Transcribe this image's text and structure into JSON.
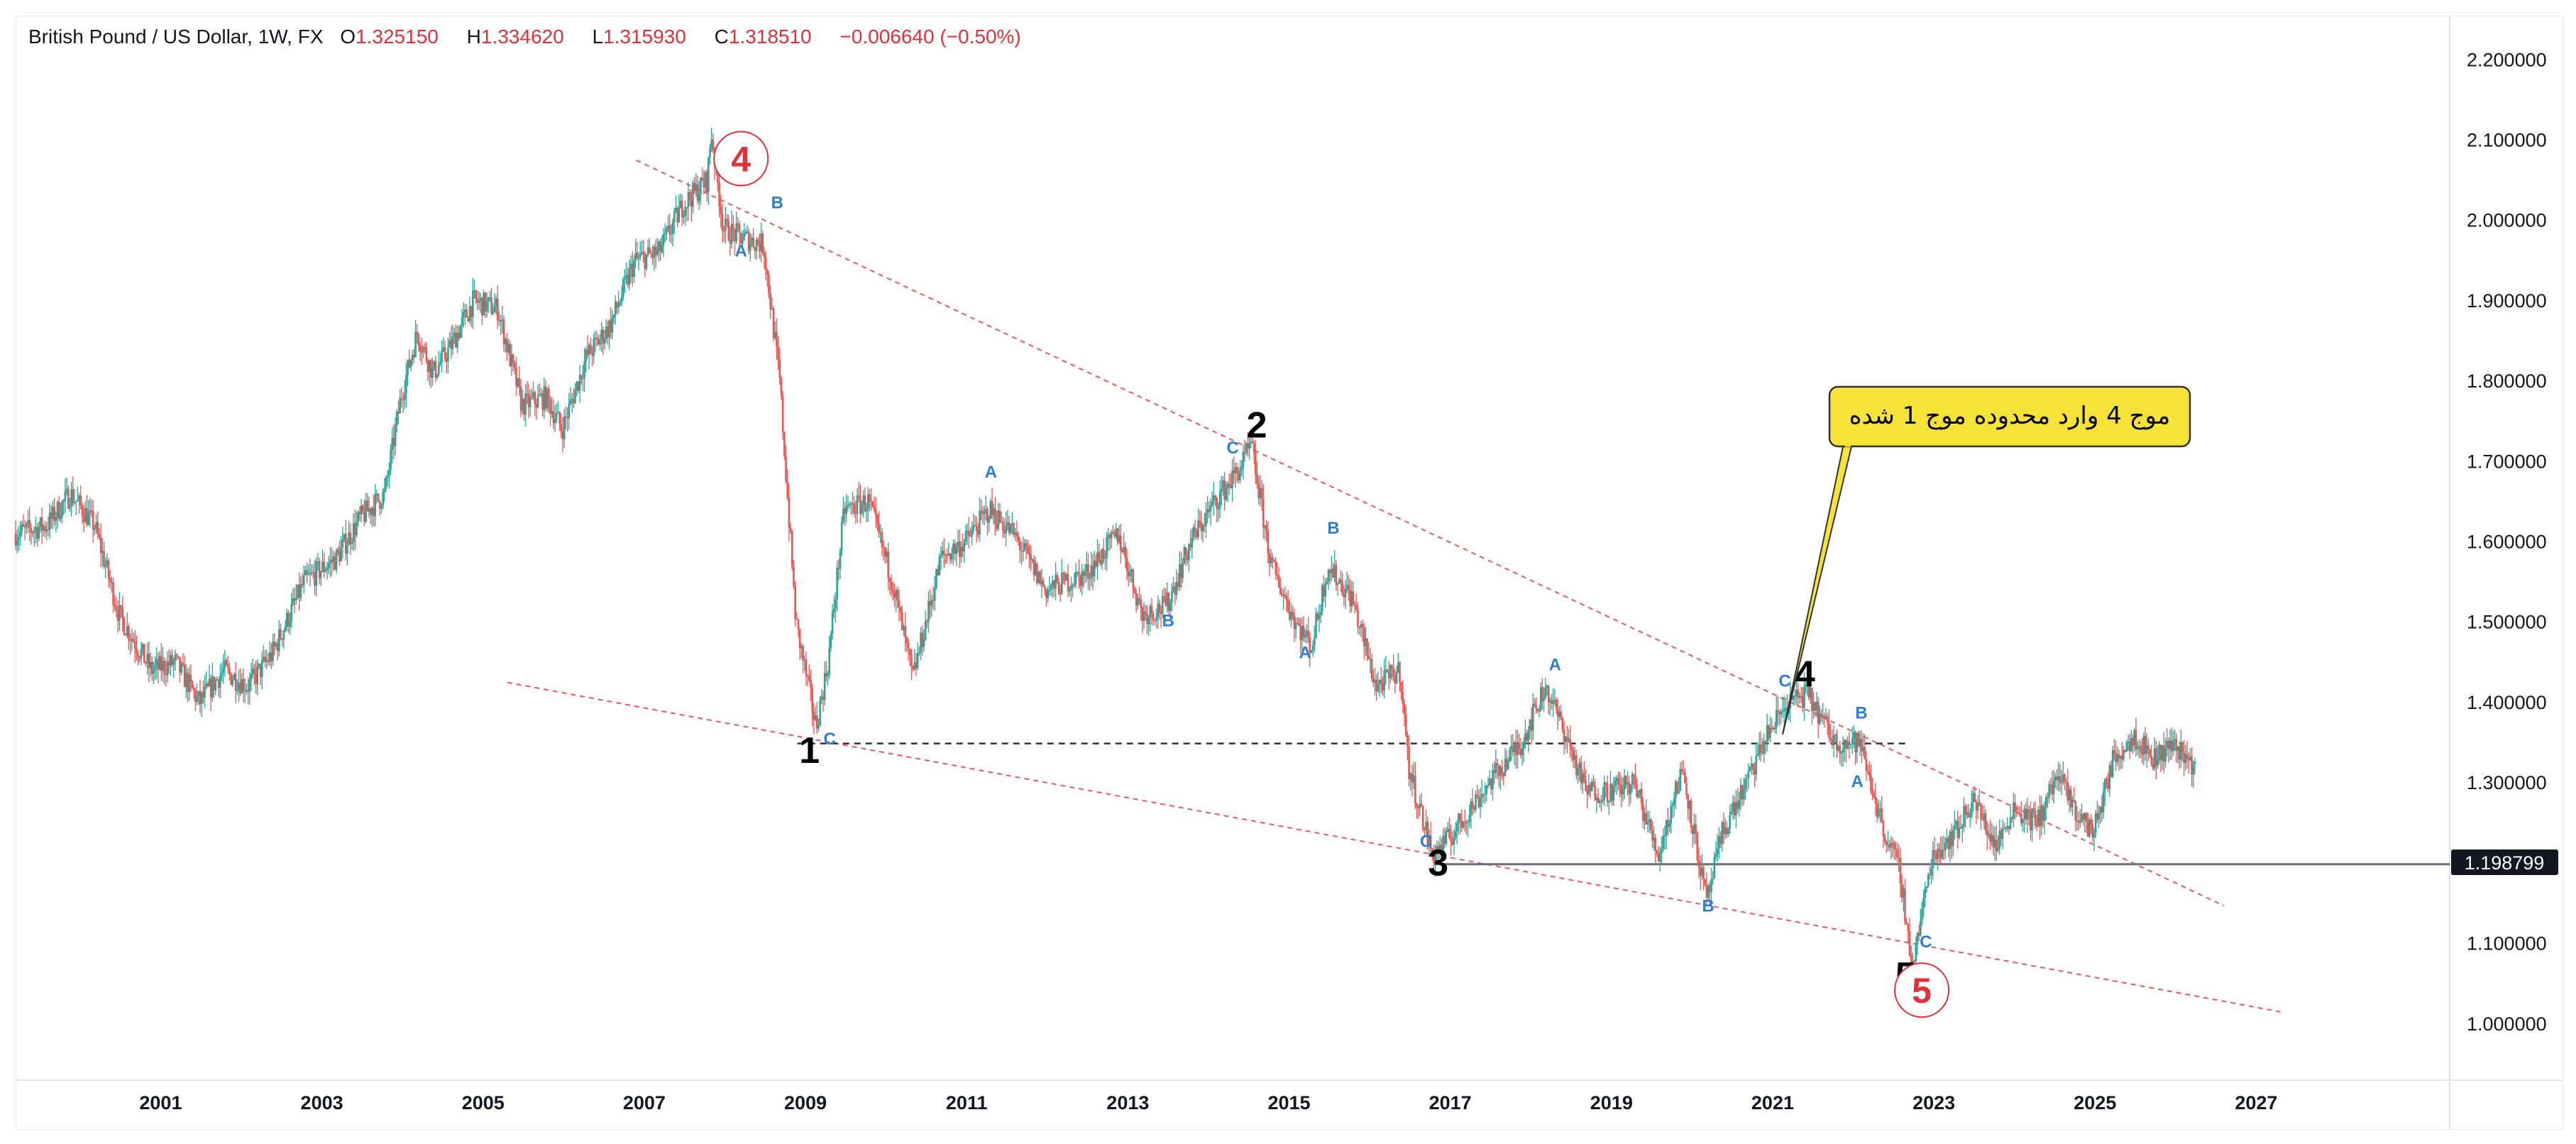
{
  "header": {
    "symbol": "British Pound / US Dollar, 1W, FX",
    "o_label": "O",
    "o_value": "1.325150",
    "h_label": "H",
    "h_value": "1.334620",
    "l_label": "L",
    "l_value": "1.315930",
    "c_label": "C",
    "c_value": "1.318510",
    "change": "−0.006640 (−0.50%)"
  },
  "colors": {
    "up": "#26a69a",
    "down": "#ef5350",
    "wave": "#2f7fd1",
    "trend": "#e0313b",
    "callout": "#f7e337"
  },
  "price_label": "1.198799",
  "callout_text": "موج 4 وارد محدوده موج 1 شده",
  "chart_data": {
    "type": "candlestick",
    "title": "British Pound / US Dollar, 1W, FX",
    "xlim": [
      1999.2,
      2029.4
    ],
    "ylim": [
      0.93,
      2.255
    ],
    "y_ticks": [
      "2.200000",
      "2.100000",
      "2.000000",
      "1.900000",
      "1.800000",
      "1.700000",
      "1.600000",
      "1.500000",
      "1.400000",
      "1.300000",
      "1.200000",
      "1.100000",
      "1.000000"
    ],
    "x_ticks": [
      "2001",
      "2003",
      "2005",
      "2007",
      "2009",
      "2011",
      "2013",
      "2015",
      "2017",
      "2019",
      "2021",
      "2023",
      "2025",
      "2027"
    ],
    "grid": false,
    "price_path": [
      [
        1999.2,
        1.61
      ],
      [
        1999.6,
        1.62
      ],
      [
        1999.9,
        1.66
      ],
      [
        2000.2,
        1.62
      ],
      [
        2000.5,
        1.51
      ],
      [
        2000.9,
        1.44
      ],
      [
        2001.2,
        1.45
      ],
      [
        2001.5,
        1.4
      ],
      [
        2001.8,
        1.44
      ],
      [
        2002.1,
        1.42
      ],
      [
        2002.4,
        1.46
      ],
      [
        2002.8,
        1.55
      ],
      [
        2003.2,
        1.58
      ],
      [
        2003.5,
        1.63
      ],
      [
        2003.8,
        1.66
      ],
      [
        2004.0,
        1.78
      ],
      [
        2004.2,
        1.86
      ],
      [
        2004.4,
        1.81
      ],
      [
        2004.6,
        1.84
      ],
      [
        2004.9,
        1.9
      ],
      [
        2005.2,
        1.89
      ],
      [
        2005.5,
        1.77
      ],
      [
        2005.8,
        1.78
      ],
      [
        2006.0,
        1.74
      ],
      [
        2006.3,
        1.83
      ],
      [
        2006.6,
        1.87
      ],
      [
        2006.9,
        1.95
      ],
      [
        2007.2,
        1.96
      ],
      [
        2007.5,
        2.02
      ],
      [
        2007.8,
        2.05
      ],
      [
        2007.85,
        2.11
      ],
      [
        2008.0,
        1.99
      ],
      [
        2008.2,
        1.98
      ],
      [
        2008.5,
        1.97
      ],
      [
        2008.7,
        1.8
      ],
      [
        2008.9,
        1.5
      ],
      [
        2009.15,
        1.37
      ],
      [
        2009.3,
        1.45
      ],
      [
        2009.5,
        1.64
      ],
      [
        2009.8,
        1.65
      ],
      [
        2010.1,
        1.55
      ],
      [
        2010.35,
        1.43
      ],
      [
        2010.7,
        1.58
      ],
      [
        2011.0,
        1.6
      ],
      [
        2011.3,
        1.64
      ],
      [
        2011.6,
        1.61
      ],
      [
        2012.0,
        1.54
      ],
      [
        2012.5,
        1.56
      ],
      [
        2012.9,
        1.61
      ],
      [
        2013.2,
        1.51
      ],
      [
        2013.5,
        1.52
      ],
      [
        2013.8,
        1.6
      ],
      [
        2014.1,
        1.65
      ],
      [
        2014.4,
        1.69
      ],
      [
        2014.55,
        1.72
      ],
      [
        2014.8,
        1.57
      ],
      [
        2015.1,
        1.5
      ],
      [
        2015.3,
        1.47
      ],
      [
        2015.5,
        1.57
      ],
      [
        2015.8,
        1.53
      ],
      [
        2016.1,
        1.42
      ],
      [
        2016.4,
        1.44
      ],
      [
        2016.5,
        1.32
      ],
      [
        2016.8,
        1.21
      ],
      [
        2017.0,
        1.23
      ],
      [
        2017.5,
        1.3
      ],
      [
        2017.9,
        1.35
      ],
      [
        2018.2,
        1.42
      ],
      [
        2018.45,
        1.36
      ],
      [
        2018.7,
        1.29
      ],
      [
        2019.0,
        1.29
      ],
      [
        2019.3,
        1.3
      ],
      [
        2019.6,
        1.21
      ],
      [
        2019.9,
        1.32
      ],
      [
        2020.2,
        1.15
      ],
      [
        2020.4,
        1.24
      ],
      [
        2020.7,
        1.3
      ],
      [
        2020.95,
        1.36
      ],
      [
        2021.2,
        1.4
      ],
      [
        2021.45,
        1.41
      ],
      [
        2021.8,
        1.35
      ],
      [
        2022.1,
        1.35
      ],
      [
        2022.4,
        1.24
      ],
      [
        2022.6,
        1.19
      ],
      [
        2022.75,
        1.07
      ],
      [
        2023.0,
        1.21
      ],
      [
        2023.3,
        1.24
      ],
      [
        2023.5,
        1.28
      ],
      [
        2023.8,
        1.22
      ],
      [
        2024.0,
        1.27
      ],
      [
        2024.3,
        1.25
      ],
      [
        2024.55,
        1.31
      ],
      [
        2024.8,
        1.26
      ],
      [
        2025.0,
        1.24
      ],
      [
        2025.25,
        1.33
      ],
      [
        2025.5,
        1.36
      ],
      [
        2025.75,
        1.33
      ],
      [
        2026.0,
        1.35
      ],
      [
        2026.25,
        1.32
      ]
    ],
    "annotations": {
      "wave_labels": [
        {
          "text": "1",
          "x": 2009.05,
          "y": 1.325
        },
        {
          "text": "2",
          "x": 2014.6,
          "y": 1.73
        },
        {
          "text": "3",
          "x": 2016.85,
          "y": 1.185
        },
        {
          "text": "4",
          "x": 2021.4,
          "y": 1.42
        },
        {
          "text": "5",
          "x": 2022.65,
          "y": 1.045
        }
      ],
      "sub_labels": [
        {
          "text": "A",
          "x": 2008.2,
          "y": 1.955
        },
        {
          "text": "B",
          "x": 2008.65,
          "y": 2.015
        },
        {
          "text": "C",
          "x": 2009.3,
          "y": 1.348
        },
        {
          "text": "A",
          "x": 2011.3,
          "y": 1.68
        },
        {
          "text": "B",
          "x": 2013.5,
          "y": 1.495
        },
        {
          "text": "C",
          "x": 2014.3,
          "y": 1.71
        },
        {
          "text": "A",
          "x": 2015.2,
          "y": 1.455
        },
        {
          "text": "B",
          "x": 2015.55,
          "y": 1.61
        },
        {
          "text": "C",
          "x": 2016.7,
          "y": 1.22
        },
        {
          "text": "A",
          "x": 2018.3,
          "y": 1.44
        },
        {
          "text": "B",
          "x": 2020.2,
          "y": 1.14
        },
        {
          "text": "C",
          "x": 2021.15,
          "y": 1.42
        },
        {
          "text": "A",
          "x": 2022.05,
          "y": 1.295
        },
        {
          "text": "B",
          "x": 2022.1,
          "y": 1.38
        },
        {
          "text": "C",
          "x": 2022.9,
          "y": 1.095
        }
      ],
      "circle_labels": [
        {
          "text": "4",
          "x": 2008.2,
          "y": 2.077
        },
        {
          "text": "5",
          "x": 2022.85,
          "y": 1.042
        }
      ],
      "trendlines": [
        {
          "x1": 2006.9,
          "y1": 2.075,
          "x2": 2026.6,
          "y2": 1.147,
          "style": "dashed-red"
        },
        {
          "x1": 2005.3,
          "y1": 1.425,
          "x2": 2027.3,
          "y2": 1.015,
          "style": "dashed-red"
        }
      ],
      "hlines": [
        {
          "y": 1.349,
          "x1": 2008.9,
          "x2": 2022.7,
          "style": "dashed-dark"
        },
        {
          "y": 1.1988,
          "x1": 2016.8,
          "x2": 2029.4,
          "style": "solid-gray"
        }
      ]
    }
  }
}
